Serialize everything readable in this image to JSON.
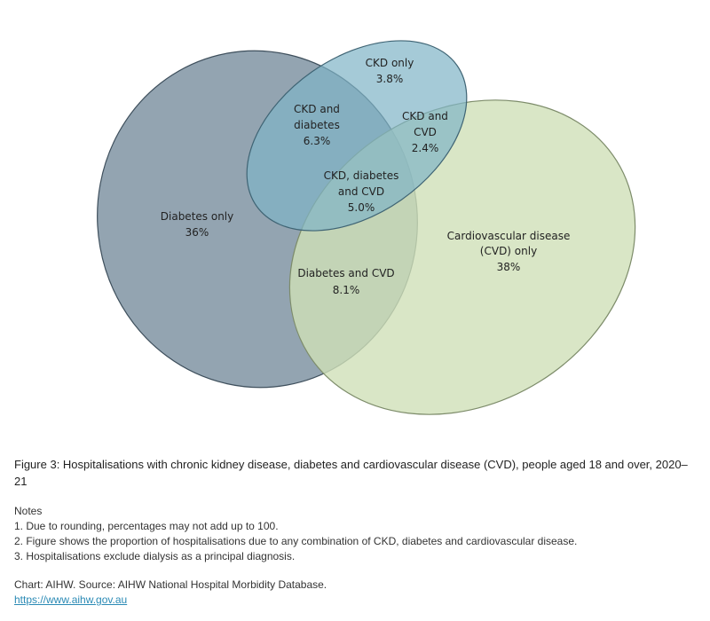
{
  "chart_data": {
    "type": "venn",
    "sets": [
      "Diabetes",
      "CKD",
      "Cardiovascular disease (CVD)"
    ],
    "regions": [
      {
        "id": "diabetes_only",
        "label_lines": [
          "Diabetes only"
        ],
        "value_label": "36%",
        "value": 36
      },
      {
        "id": "ckd_only",
        "label_lines": [
          "CKD only"
        ],
        "value_label": "3.8%",
        "value": 3.8
      },
      {
        "id": "cvd_only",
        "label_lines": [
          "Cardiovascular disease",
          "(CVD) only"
        ],
        "value_label": "38%",
        "value": 38
      },
      {
        "id": "ckd_diabetes",
        "label_lines": [
          "CKD and",
          "diabetes"
        ],
        "value_label": "6.3%",
        "value": 6.3
      },
      {
        "id": "ckd_cvd",
        "label_lines": [
          "CKD and",
          "CVD"
        ],
        "value_label": "2.4%",
        "value": 2.4
      },
      {
        "id": "all_three",
        "label_lines": [
          "CKD, diabetes",
          "and CVD"
        ],
        "value_label": "5.0%",
        "value": 5.0
      },
      {
        "id": "diabetes_cvd",
        "label_lines": [
          "Diabetes and CVD"
        ],
        "value_label": "8.1%",
        "value": 8.1
      }
    ],
    "colors": {
      "diabetes": "#6f8597",
      "ckd": "#7fb4c6",
      "cvd": "#cfe0b8"
    }
  },
  "caption": {
    "title": "Figure 3: Hospitalisations with chronic kidney disease, diabetes and cardiovascular disease (CVD), people aged 18 and over, 2020–21",
    "notes_heading": "Notes",
    "notes": [
      "1. Due to rounding, percentages may not add up to 100.",
      "2. Figure shows the proportion of hospitalisations due to any combination of CKD, diabetes and cardiovascular disease.",
      "3. Hospitalisations exclude dialysis as a principal diagnosis."
    ],
    "source": "Chart: AIHW. Source: AIHW National Hospital Morbidity Database.",
    "link": "https://www.aihw.gov.au"
  }
}
